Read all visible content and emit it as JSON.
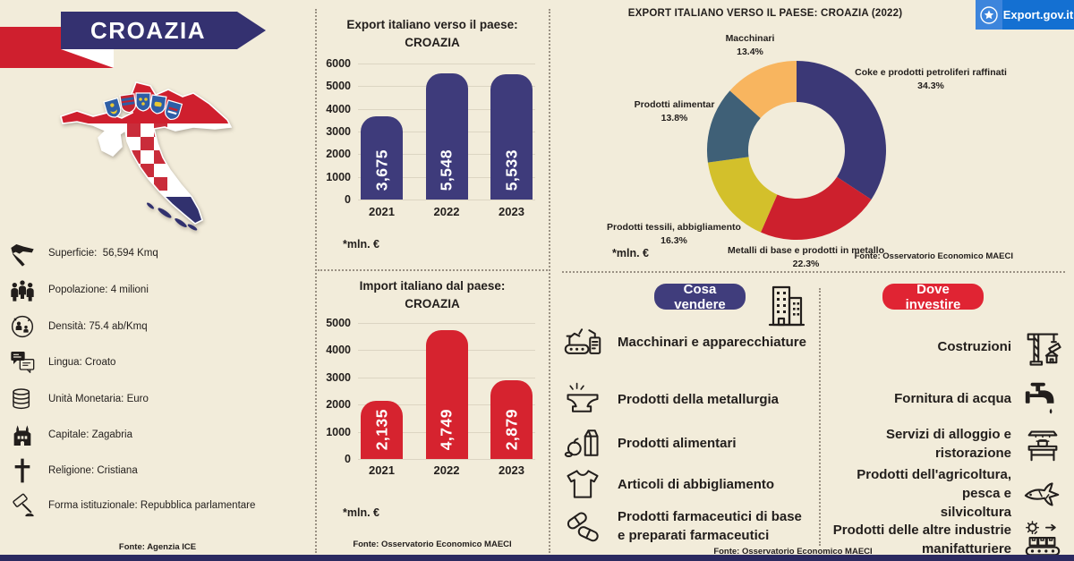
{
  "banner": {
    "title": "CROAZIA"
  },
  "logo": {
    "text": "Export.gov.it"
  },
  "facts": {
    "items": [
      {
        "icon": "croatia-map-icon",
        "label": "Superficie:  56,594 Kmq"
      },
      {
        "icon": "population-icon",
        "label": "Popolazione: 4 milioni"
      },
      {
        "icon": "density-icon",
        "label": "Densità: 75.4 ab/Kmq"
      },
      {
        "icon": "language-icon",
        "label": "Lingua: Croato"
      },
      {
        "icon": "currency-icon",
        "label": "Unità Monetaria: Euro"
      },
      {
        "icon": "capital-icon",
        "label": "Capitale: Zagabria"
      },
      {
        "icon": "religion-icon",
        "label": "Religione: Cristiana"
      },
      {
        "icon": "government-icon",
        "label": "Forma istituzionale: Repubblica parlamentare"
      }
    ],
    "source": "Fonte: Agenzia ICE"
  },
  "chart_data": [
    {
      "type": "bar",
      "title": "Export italiano verso il paese:",
      "subtitle": "CROAZIA",
      "categories": [
        "2021",
        "2022",
        "2023"
      ],
      "values": [
        3675,
        5548,
        5533
      ],
      "value_labels": [
        "3,675",
        "5,548",
        "5,533"
      ],
      "ylim": [
        0,
        6000
      ],
      "yticks": [
        0,
        1000,
        2000,
        3000,
        4000,
        5000,
        6000
      ],
      "bar_color": "#3e3b7b",
      "note": "*mln. €"
    },
    {
      "type": "bar",
      "title": "Import italiano dal paese:",
      "subtitle": "CROAZIA",
      "categories": [
        "2021",
        "2022",
        "2023"
      ],
      "values": [
        2135,
        4749,
        2879
      ],
      "value_labels": [
        "2,135",
        "4,749",
        "2,879"
      ],
      "ylim": [
        0,
        5000
      ],
      "yticks": [
        0,
        1000,
        2000,
        3000,
        4000,
        5000
      ],
      "bar_color": "#d6232f",
      "note": "*mln. €",
      "source": "Fonte: Osservatorio Economico MAECI"
    },
    {
      "type": "pie",
      "donut": true,
      "title": "EXPORT ITALIANO VERSO IL PAESE: CROAZIA (2022)",
      "legend_position": "around",
      "segments": [
        {
          "label": "Coke e prodotti petroliferi raffinati",
          "pct": "34.3%",
          "value": 34.3,
          "color": "#3b3876"
        },
        {
          "label": "Metalli di base e prodotti in metallo",
          "pct": "22.3%",
          "value": 22.3,
          "color": "#cd202d"
        },
        {
          "label": "Prodotti tessili, abbigliamento",
          "pct": "16.3%",
          "value": 16.3,
          "color": "#d3c02b"
        },
        {
          "label": "Prodotti alimentar",
          "pct": "13.8%",
          "value": 13.8,
          "color": "#3f6077"
        },
        {
          "label": "Macchinari",
          "pct": "13.4%",
          "value": 13.4,
          "color": "#f8b55f"
        }
      ],
      "note": "*mln. €",
      "source": "Fonte: Osservatorio Economico MAECI"
    }
  ],
  "sell": {
    "button": "Cosa vendere",
    "items": [
      {
        "icon": "machinery-icon",
        "lines": [
          "Macchinari e apparecchiature"
        ]
      },
      {
        "icon": "metallurgy-icon",
        "lines": [
          "Prodotti della metallurgia"
        ]
      },
      {
        "icon": "food-icon",
        "lines": [
          "Prodotti alimentari"
        ]
      },
      {
        "icon": "clothing-icon",
        "lines": [
          "Articoli di abbigliamento"
        ]
      },
      {
        "icon": "pharma-icon",
        "lines": [
          "Prodotti farmaceutici di base",
          "e preparati farmaceutici"
        ]
      }
    ],
    "source": "Fonte: Osservatorio Economico MAECI"
  },
  "invest": {
    "button": "Dove investire",
    "items": [
      {
        "icon": "crane-icon",
        "lines": [
          "Costruzioni"
        ]
      },
      {
        "icon": "faucet-icon",
        "lines": [
          "Fornitura di acqua"
        ]
      },
      {
        "icon": "restaurant-icon",
        "lines": [
          "Servizi di alloggio e ristorazione"
        ]
      },
      {
        "icon": "fish-icon",
        "lines": [
          "Prodotti dell'agricoltura, pesca e",
          "silvicoltura"
        ]
      },
      {
        "icon": "manufacturing-icon",
        "lines": [
          "Prodotti delle altre industrie",
          "manifatturiere"
        ]
      }
    ]
  }
}
